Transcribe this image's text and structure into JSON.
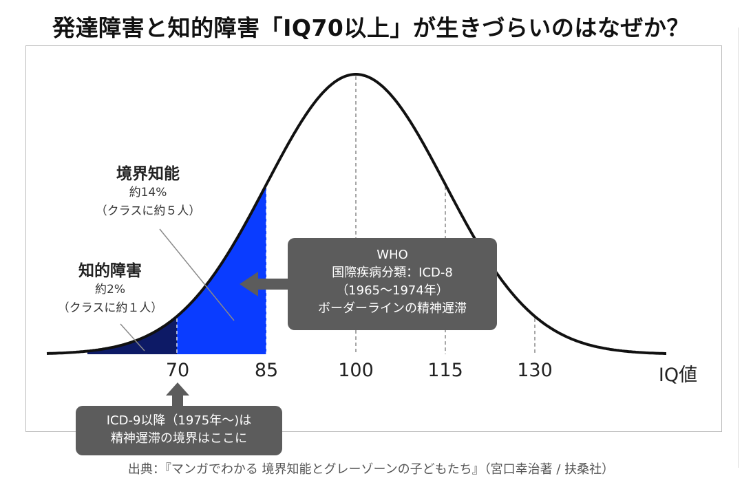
{
  "title": "発達障害と知的障害「IQ70以上」が生きづらいのはなぜか？",
  "source": "出典：『マンガでわかる 境界知能とグレーゾーンの子どもたち』（宮口幸治著 / 扶桑社）",
  "colors": {
    "curve": "#111111",
    "borderline_fill": "#0a3cff",
    "disability_fill": "#0d1a66",
    "callout_bg": "#5c5c5c"
  },
  "labels": {
    "borderline": {
      "head": "境界知能",
      "line1": "約14%",
      "line2": "（クラスに約５人）"
    },
    "disability": {
      "head": "知的障害",
      "line1": "約2%",
      "line2": "（クラスに約１人）"
    }
  },
  "callouts": {
    "who": {
      "line1": "WHO",
      "line2": "国際疾病分類：ICD-8",
      "line3": "（1965～1974年）",
      "line4": "ボーダーラインの精神遅滞"
    },
    "icd9": {
      "line1": "ICD-9以降（1975年～)は",
      "line2": "精神遅滞の境界はここに"
    }
  },
  "chart_data": {
    "type": "area",
    "distribution": "normal",
    "mean": 100,
    "sd": 15,
    "xlabel": "IQ値",
    "ylabel": "",
    "xlim": [
      40,
      145
    ],
    "x_ticks": [
      "70",
      "85",
      "100",
      "115",
      "130"
    ],
    "x_tick_values": [
      70,
      85,
      100,
      115,
      130
    ],
    "dashed_lines_at": [
      70,
      100,
      115,
      130
    ],
    "shaded_regions": [
      {
        "name": "知的障害",
        "from": 55,
        "to": 70,
        "percent": 2
      },
      {
        "name": "境界知能",
        "from": 70,
        "to": 85,
        "percent": 14
      }
    ],
    "grid": false,
    "legend": "none"
  }
}
